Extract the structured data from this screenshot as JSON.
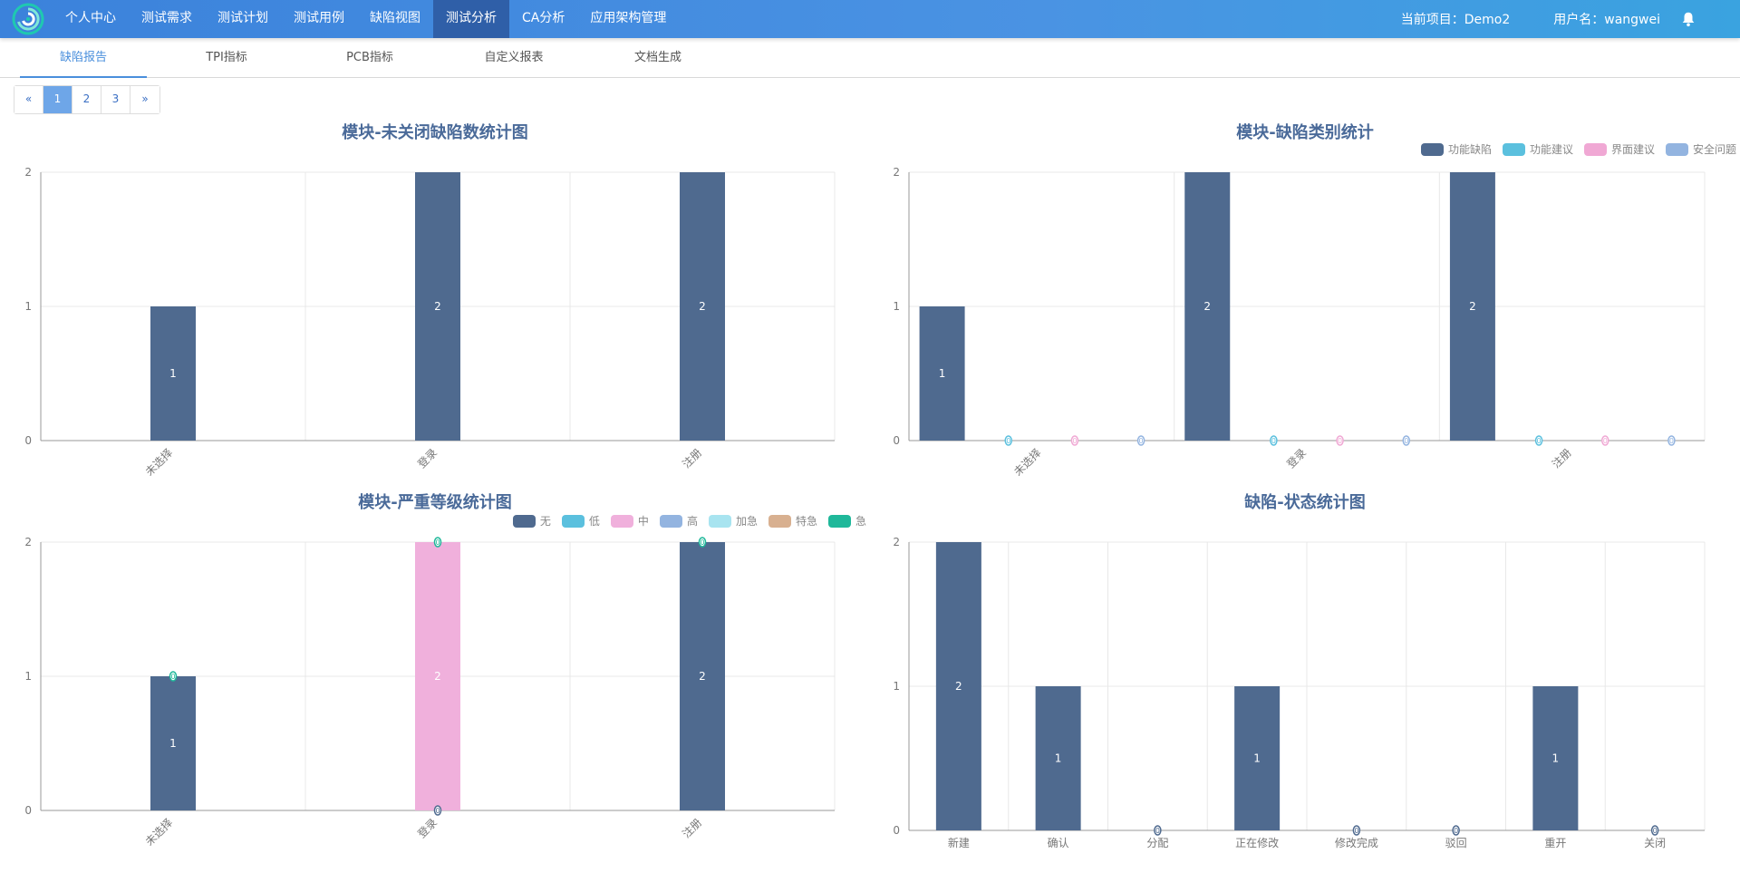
{
  "topbar": {
    "logo_icon": "swirl-logo",
    "nav": [
      "个人中心",
      "测试需求",
      "测试计划",
      "测试用例",
      "缺陷视图",
      "测试分析",
      "CA分析",
      "应用架构管理"
    ],
    "active_nav": 5,
    "project": "当前项目：Demo2",
    "user": "用户名：wangwei",
    "bell_icon": "bell-icon"
  },
  "subnav": {
    "items": [
      "缺陷报告",
      "TPI指标",
      "PCB指标",
      "自定义报表",
      "文档生成"
    ],
    "active": 0
  },
  "pager": {
    "prev": "«",
    "pages": [
      "1",
      "2",
      "3"
    ],
    "next": "»",
    "current": "1"
  },
  "colors": {
    "bar_primary": "#4f6a8f",
    "grid": "#e8e8e8",
    "axis": "#999999",
    "title": "#4a6a99"
  },
  "chart_data": [
    {
      "id": "chart1",
      "type": "bar",
      "title": "模块-未关闭缺陷数统计图",
      "categories": [
        "未选择",
        "登录",
        "注册"
      ],
      "series": [
        {
          "values": [
            1,
            2,
            2
          ],
          "color": "#4f6a8f"
        }
      ],
      "ylim": [
        0,
        2
      ],
      "yticks": [
        0,
        1,
        2
      ],
      "grid": true,
      "xlabel_rotate": true
    },
    {
      "id": "chart2",
      "type": "bar",
      "title": "模块-缺陷类别统计",
      "categories": [
        "未选择",
        "登录",
        "注册"
      ],
      "series": [
        {
          "name": "功能缺陷",
          "values": [
            1,
            2,
            2
          ],
          "color": "#4f6a8f"
        },
        {
          "name": "功能建议",
          "values": [
            0,
            0,
            0
          ],
          "color": "#5bc0de"
        },
        {
          "name": "界面建议",
          "values": [
            0,
            0,
            0
          ],
          "color": "#f0a8d4"
        },
        {
          "name": "安全问题",
          "values": [
            0,
            0,
            0
          ],
          "color": "#93b4e0"
        }
      ],
      "ylim": [
        0,
        2
      ],
      "yticks": [
        0,
        1,
        2
      ],
      "grid": true,
      "legend": "top-right",
      "xlabel_rotate": true
    },
    {
      "id": "chart3",
      "type": "bar",
      "title": "模块-严重等级统计图",
      "stacked": true,
      "categories": [
        "未选择",
        "登录",
        "注册"
      ],
      "series": [
        {
          "name": "无",
          "values": [
            1,
            0,
            2
          ],
          "color": "#4f6a8f"
        },
        {
          "name": "低",
          "values": [
            0,
            0,
            0
          ],
          "color": "#5bc0de"
        },
        {
          "name": "中",
          "values": [
            0,
            2,
            0
          ],
          "color": "#f0b0dc"
        },
        {
          "name": "高",
          "values": [
            0,
            0,
            0
          ],
          "color": "#93b4e0"
        },
        {
          "name": "加急",
          "values": [
            0,
            0,
            0
          ],
          "color": "#a8e4f0"
        },
        {
          "name": "特急",
          "values": [
            0,
            0,
            0
          ],
          "color": "#d8b090"
        },
        {
          "name": "急",
          "values": [
            0,
            0,
            0
          ],
          "color": "#1fb89a"
        }
      ],
      "ylim": [
        0,
        2
      ],
      "yticks": [
        0,
        1,
        2
      ],
      "grid": true,
      "legend": "top-right",
      "xlabel_rotate": true
    },
    {
      "id": "chart4",
      "type": "bar",
      "title": "缺陷-状态统计图",
      "categories": [
        "新建",
        "确认",
        "分配",
        "正在修改",
        "修改完成",
        "驳回",
        "重开",
        "关闭"
      ],
      "series": [
        {
          "values": [
            2,
            1,
            0,
            1,
            0,
            0,
            1,
            0
          ],
          "color": "#4f6a8f"
        }
      ],
      "ylim": [
        0,
        2
      ],
      "yticks": [
        0,
        1,
        2
      ],
      "grid": true,
      "xlabel_rotate": false
    }
  ]
}
